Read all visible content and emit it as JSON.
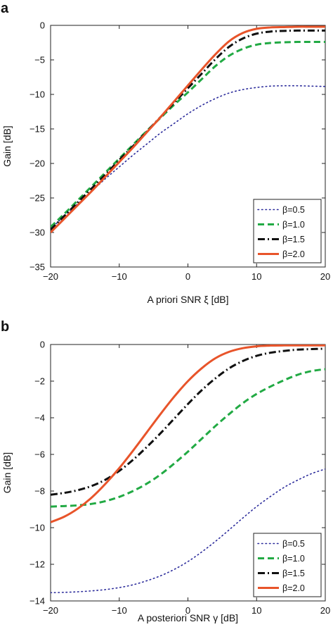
{
  "chart_data": [
    {
      "panel": "a",
      "type": "line",
      "xlabel": "A priori SNR ξ [dB]",
      "ylabel": "Gain [dB]",
      "xlim": [
        -20,
        20
      ],
      "ylim": [
        -35,
        0
      ],
      "xticks": [
        -20,
        -10,
        0,
        10,
        20
      ],
      "yticks": [
        0,
        -5,
        -10,
        -15,
        -20,
        -25,
        -30,
        -35
      ],
      "grid": false,
      "legend_position": "bottom-right",
      "x": [
        -20,
        -18,
        -16,
        -14,
        -12,
        -10,
        -8,
        -6,
        -4,
        -2,
        0,
        2,
        4,
        6,
        8,
        10,
        12,
        14,
        16,
        18,
        20
      ],
      "series": [
        {
          "name": "β=0.5",
          "style": "dotted",
          "color": "#2b2b9b",
          "values": [
            -29.5,
            -27.6,
            -25.8,
            -24.0,
            -22.2,
            -20.5,
            -18.8,
            -17.2,
            -15.6,
            -14.2,
            -12.8,
            -11.6,
            -10.6,
            -9.8,
            -9.3,
            -9.0,
            -8.8,
            -8.75,
            -8.75,
            -8.8,
            -8.85
          ]
        },
        {
          "name": "β=1.0",
          "style": "dashed",
          "color": "#22aa44",
          "values": [
            -29.2,
            -27.3,
            -25.3,
            -23.3,
            -21.3,
            -19.3,
            -17.3,
            -15.3,
            -13.4,
            -11.5,
            -9.7,
            -7.8,
            -5.9,
            -4.4,
            -3.4,
            -2.8,
            -2.55,
            -2.45,
            -2.4,
            -2.4,
            -2.4
          ]
        },
        {
          "name": "β=1.5",
          "style": "dashdot",
          "color": "#111111",
          "values": [
            -29.6,
            -27.6,
            -25.6,
            -23.6,
            -21.6,
            -19.5,
            -17.5,
            -15.4,
            -13.3,
            -11.2,
            -9.1,
            -7.0,
            -4.9,
            -3.1,
            -1.9,
            -1.2,
            -0.9,
            -0.8,
            -0.75,
            -0.75,
            -0.75
          ]
        },
        {
          "name": "β=2.0",
          "style": "solid",
          "color": "#e8542a",
          "values": [
            -30.0,
            -28.0,
            -26.0,
            -24.0,
            -21.9,
            -19.8,
            -17.7,
            -15.5,
            -13.3,
            -11.0,
            -8.7,
            -6.4,
            -4.2,
            -2.3,
            -1.1,
            -0.5,
            -0.3,
            -0.25,
            -0.2,
            -0.2,
            -0.2
          ]
        }
      ]
    },
    {
      "panel": "b",
      "type": "line",
      "xlabel": "A posteriori SNR γ [dB]",
      "ylabel": "Gain [dB]",
      "xlim": [
        -20,
        20
      ],
      "ylim": [
        -14,
        0
      ],
      "xticks": [
        -20,
        -10,
        0,
        10,
        20
      ],
      "yticks": [
        0,
        -2,
        -4,
        -6,
        -8,
        -10,
        -12,
        -14
      ],
      "grid": false,
      "legend_position": "bottom-right",
      "x": [
        -20,
        -18,
        -16,
        -14,
        -12,
        -10,
        -8,
        -6,
        -4,
        -2,
        0,
        2,
        4,
        6,
        8,
        10,
        12,
        14,
        16,
        18,
        20
      ],
      "series": [
        {
          "name": "β=0.5",
          "style": "dotted",
          "color": "#2b2b9b",
          "values": [
            -13.55,
            -13.53,
            -13.5,
            -13.45,
            -13.38,
            -13.27,
            -13.12,
            -12.9,
            -12.63,
            -12.28,
            -11.85,
            -11.33,
            -10.75,
            -10.12,
            -9.47,
            -8.85,
            -8.3,
            -7.8,
            -7.4,
            -7.05,
            -6.8
          ]
        },
        {
          "name": "β=1.0",
          "style": "dashed",
          "color": "#22aa44",
          "values": [
            -8.85,
            -8.82,
            -8.78,
            -8.7,
            -8.55,
            -8.32,
            -8.0,
            -7.6,
            -7.1,
            -6.5,
            -5.85,
            -5.15,
            -4.45,
            -3.8,
            -3.2,
            -2.7,
            -2.3,
            -1.95,
            -1.65,
            -1.45,
            -1.35
          ]
        },
        {
          "name": "β=1.5",
          "style": "dashdot",
          "color": "#111111",
          "values": [
            -8.2,
            -8.1,
            -7.95,
            -7.72,
            -7.38,
            -6.9,
            -6.3,
            -5.6,
            -4.85,
            -4.05,
            -3.25,
            -2.5,
            -1.85,
            -1.3,
            -0.9,
            -0.62,
            -0.45,
            -0.35,
            -0.28,
            -0.25,
            -0.23
          ]
        },
        {
          "name": "β=2.0",
          "style": "solid",
          "color": "#e8542a",
          "values": [
            -9.7,
            -9.4,
            -8.95,
            -8.35,
            -7.6,
            -6.75,
            -5.8,
            -4.8,
            -3.8,
            -2.85,
            -2.0,
            -1.3,
            -0.75,
            -0.4,
            -0.2,
            -0.1,
            -0.06,
            -0.05,
            -0.05,
            -0.05,
            -0.05
          ]
        }
      ]
    }
  ]
}
